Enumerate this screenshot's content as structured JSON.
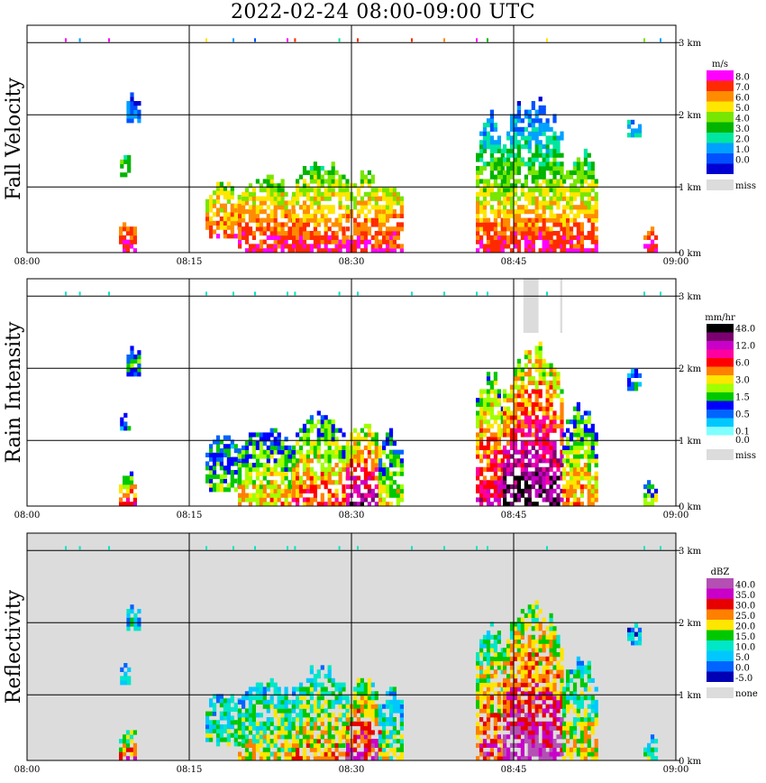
{
  "title": "2022-02-24   08:00-09:00 UTC",
  "colors": {
    "grid": "#000000",
    "missing": "#dcdcdc",
    "frame": "#000000"
  },
  "chart_data": [
    {
      "type": "heatmap",
      "ylabel": "Fall Velocity",
      "unit": "m/s",
      "x_ticks": [
        "08:00",
        "08:15",
        "08:30",
        "08:45",
        "09:00"
      ],
      "y_ticks": [
        "0 km",
        "1 km",
        "2 km",
        "3 km"
      ],
      "xlim": [
        "08:00",
        "09:00"
      ],
      "ylim_km": [
        0,
        3.0
      ],
      "background": "none",
      "legend": [
        {
          "label": "8.0",
          "color": "#ff00ff"
        },
        {
          "label": "7.0",
          "color": "#ff2a00"
        },
        {
          "label": "6.0",
          "color": "#ff8c00"
        },
        {
          "label": "5.0",
          "color": "#ffe600"
        },
        {
          "label": "4.0",
          "color": "#78e600"
        },
        {
          "label": "3.0",
          "color": "#00b400"
        },
        {
          "label": "2.0",
          "color": "#00e6a0"
        },
        {
          "label": "1.0",
          "color": "#00a0ff"
        },
        {
          "label": "0.0",
          "color": "#0050ff"
        },
        {
          "label": "",
          "color": "#0000d2"
        },
        {
          "label": "miss",
          "color": "#dcdcdc"
        }
      ]
    },
    {
      "type": "heatmap",
      "ylabel": "Rain Intensity",
      "unit": "mm/hr",
      "x_ticks": [
        "08:00",
        "08:15",
        "08:30",
        "08:45",
        "09:00"
      ],
      "y_ticks": [
        "0 km",
        "1 km",
        "2 km",
        "3 km"
      ],
      "xlim": [
        "08:00",
        "09:00"
      ],
      "ylim_km": [
        0,
        3.0
      ],
      "background": "none",
      "legend": [
        {
          "label": "48.0",
          "color": "#000000"
        },
        {
          "label": "",
          "color": "#7a0070"
        },
        {
          "label": "12.0",
          "color": "#c800c8"
        },
        {
          "label": "",
          "color": "#ff00a0"
        },
        {
          "label": "6.0",
          "color": "#ff0000"
        },
        {
          "label": "",
          "color": "#ff8000"
        },
        {
          "label": "3.0",
          "color": "#ffe600"
        },
        {
          "label": "",
          "color": "#a0ff00"
        },
        {
          "label": "1.5",
          "color": "#00c800"
        },
        {
          "label": "",
          "color": "#0000ff"
        },
        {
          "label": "0.5",
          "color": "#0064ff"
        },
        {
          "label": "",
          "color": "#00c8ff"
        },
        {
          "label": "0.1",
          "color": "#80ffff"
        },
        {
          "label": "0.0",
          "color": "#ffffff"
        },
        {
          "label": "miss",
          "color": "#dcdcdc"
        }
      ]
    },
    {
      "type": "heatmap",
      "ylabel": "Reflectivity",
      "unit": "dBZ",
      "x_ticks": [
        "08:00",
        "08:15",
        "08:30",
        "08:45",
        "09:00"
      ],
      "y_ticks": [
        "0 km",
        "1 km",
        "2 km",
        "3 km"
      ],
      "xlim": [
        "08:00",
        "09:00"
      ],
      "ylim_km": [
        0,
        3.0
      ],
      "background": "#dcdcdc",
      "legend": [
        {
          "label": "40.0",
          "color": "#b450b4"
        },
        {
          "label": "35.0",
          "color": "#c800c8"
        },
        {
          "label": "30.0",
          "color": "#e60000"
        },
        {
          "label": "25.0",
          "color": "#ff8000"
        },
        {
          "label": "20.0",
          "color": "#ffe600"
        },
        {
          "label": "15.0",
          "color": "#00c800"
        },
        {
          "label": "10.0",
          "color": "#00e6c8"
        },
        {
          "label": "5.0",
          "color": "#00c8ff"
        },
        {
          "label": "0.0",
          "color": "#0064ff"
        },
        {
          "label": "-5.0",
          "color": "#0000b4"
        },
        {
          "label": "none",
          "color": "#dcdcdc"
        }
      ]
    }
  ]
}
